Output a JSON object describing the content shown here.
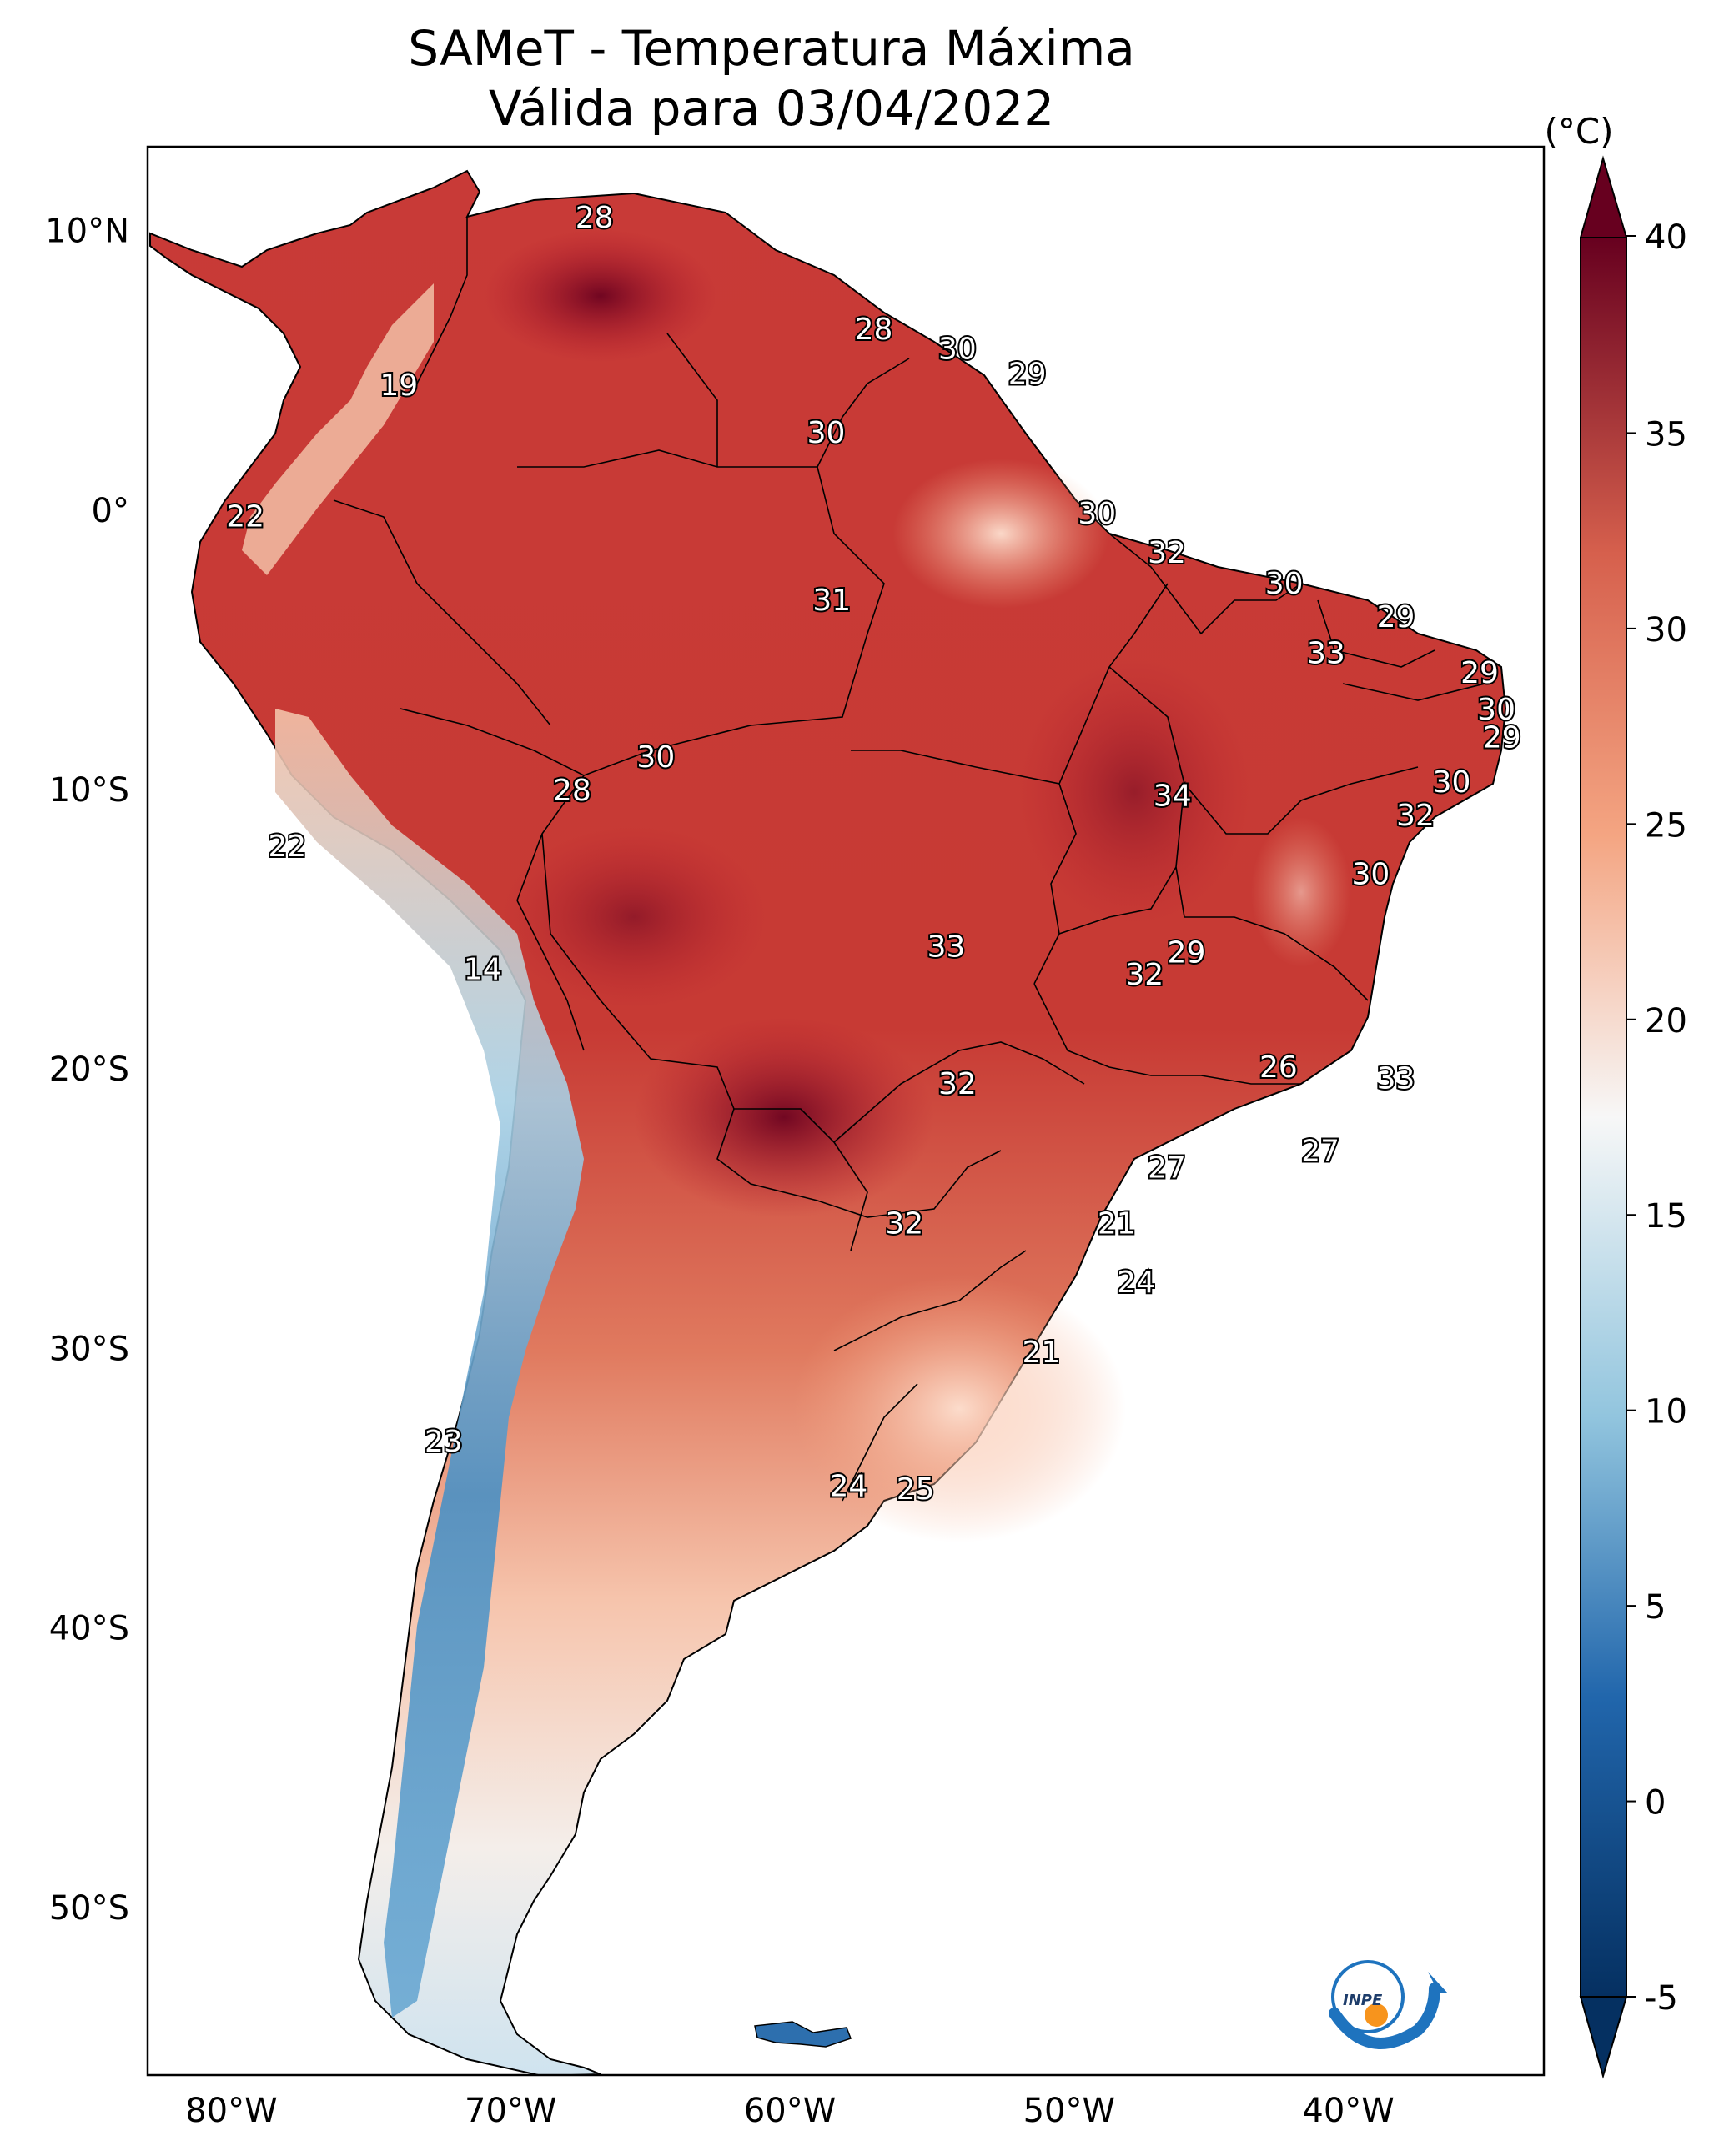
{
  "title": {
    "line1": "SAMeT - Temperatura Máxima",
    "line2": "Válida para 03/04/2022"
  },
  "colorbar": {
    "unit": "(°C)",
    "ticks": [
      "40",
      "35",
      "30",
      "25",
      "20",
      "15",
      "10",
      "5",
      "0",
      "-5"
    ],
    "range": [
      -5,
      40
    ],
    "colors": {
      "max": "#67001f",
      "warm": "#d6604d",
      "mild": "#f4a582",
      "neutral": "#f7f7f7",
      "cool": "#92c5de",
      "cold": "#2166ac",
      "min": "#053061"
    }
  },
  "axes": {
    "lat_labels": [
      "10°N",
      "0°",
      "10°S",
      "20°S",
      "30°S",
      "40°S",
      "50°S"
    ],
    "lon_labels": [
      "80°W",
      "70°W",
      "60°W",
      "50°W",
      "40°W"
    ],
    "lat_range": [
      -56,
      13
    ],
    "lon_range": [
      -83,
      -33
    ]
  },
  "city_labels": [
    {
      "v": "28",
      "lon": -67,
      "lat": 10.5
    },
    {
      "v": "19",
      "lon": -74,
      "lat": 4.5
    },
    {
      "v": "28",
      "lon": -57,
      "lat": 6.5
    },
    {
      "v": "30",
      "lon": -54,
      "lat": 5.8
    },
    {
      "v": "29",
      "lon": -51.5,
      "lat": 4.9
    },
    {
      "v": "30",
      "lon": -58.7,
      "lat": 2.8
    },
    {
      "v": "22",
      "lon": -79.5,
      "lat": -0.2
    },
    {
      "v": "30",
      "lon": -49,
      "lat": -0.1
    },
    {
      "v": "32",
      "lon": -46.5,
      "lat": -1.5
    },
    {
      "v": "31",
      "lon": -58.5,
      "lat": -3.2
    },
    {
      "v": "30",
      "lon": -42.3,
      "lat": -2.6
    },
    {
      "v": "29",
      "lon": -38.3,
      "lat": -3.8
    },
    {
      "v": "33",
      "lon": -40.8,
      "lat": -5.1
    },
    {
      "v": "29",
      "lon": -35.3,
      "lat": -5.8
    },
    {
      "v": "30",
      "lon": -34.7,
      "lat": -7.1
    },
    {
      "v": "29",
      "lon": -34.5,
      "lat": -8.1
    },
    {
      "v": "30",
      "lon": -36.3,
      "lat": -9.7
    },
    {
      "v": "32",
      "lon": -37.6,
      "lat": -10.9
    },
    {
      "v": "34",
      "lon": -46.3,
      "lat": -10.2
    },
    {
      "v": "30",
      "lon": -64.8,
      "lat": -8.8
    },
    {
      "v": "28",
      "lon": -67.8,
      "lat": -10.0
    },
    {
      "v": "22",
      "lon": -78.0,
      "lat": -12.0
    },
    {
      "v": "30",
      "lon": -39.2,
      "lat": -13.0
    },
    {
      "v": "14",
      "lon": -71.0,
      "lat": -16.4
    },
    {
      "v": "33",
      "lon": -54.4,
      "lat": -15.6
    },
    {
      "v": "29",
      "lon": -45.8,
      "lat": -15.8
    },
    {
      "v": "32",
      "lon": -47.3,
      "lat": -16.6
    },
    {
      "v": "26",
      "lon": -42.5,
      "lat": -19.9
    },
    {
      "v": "33",
      "lon": -38.3,
      "lat": -20.3
    },
    {
      "v": "32",
      "lon": -54.0,
      "lat": -20.5
    },
    {
      "v": "27",
      "lon": -41.0,
      "lat": -22.9
    },
    {
      "v": "27",
      "lon": -46.5,
      "lat": -23.5
    },
    {
      "v": "32",
      "lon": -55.9,
      "lat": -25.5
    },
    {
      "v": "21",
      "lon": -48.3,
      "lat": -25.5
    },
    {
      "v": "24",
      "lon": -47.6,
      "lat": -27.6
    },
    {
      "v": "21",
      "lon": -51.0,
      "lat": -30.1
    },
    {
      "v": "23",
      "lon": -72.4,
      "lat": -33.3
    },
    {
      "v": "24",
      "lon": -57.9,
      "lat": -34.9
    },
    {
      "v": "25",
      "lon": -55.5,
      "lat": -35.0
    }
  ],
  "logo": {
    "text": "INPE",
    "colors": {
      "arc": "#1e73be",
      "dot": "#f7941d"
    }
  }
}
